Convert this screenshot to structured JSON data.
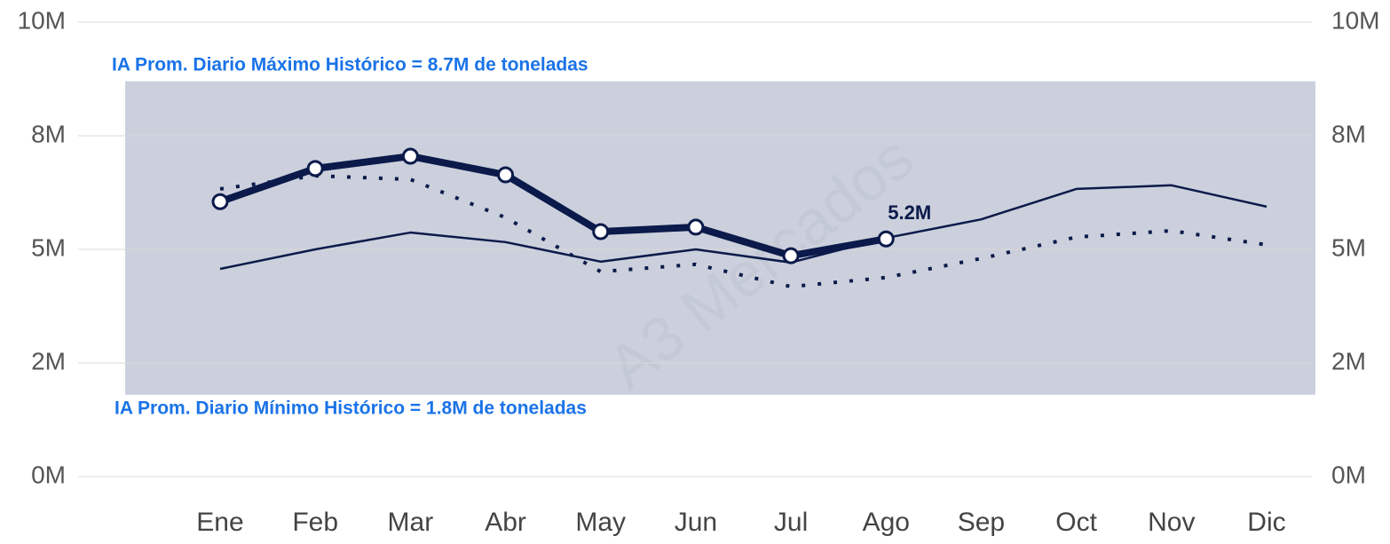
{
  "chart_data": {
    "type": "line",
    "categories": [
      "Ene",
      "Feb",
      "Mar",
      "Abr",
      "May",
      "Jun",
      "Jul",
      "Ago",
      "Sep",
      "Oct",
      "Nov",
      "Dic"
    ],
    "series": [
      {
        "color": "#0b1a4a",
        "style": "solid",
        "width": 2.5,
        "values": [
          4.57,
          5.0,
          5.37,
          5.16,
          4.73,
          5.0,
          4.71,
          5.25,
          5.66,
          6.33,
          6.41,
          5.94
        ]
      },
      {
        "color": "#0b1a4a",
        "style": "dotted",
        "width": 4,
        "values": [
          6.33,
          6.62,
          6.54,
          5.7,
          4.51,
          4.67,
          4.18,
          4.38,
          4.8,
          5.27,
          5.41,
          5.1
        ]
      },
      {
        "color": "#0b1a4a",
        "style": "solid",
        "width": 8,
        "markers": true,
        "values": [
          6.05,
          6.78,
          7.05,
          6.64,
          5.39,
          5.49,
          4.86,
          5.23,
          null,
          null,
          null,
          null
        ],
        "value_labels": [
          null,
          null,
          null,
          null,
          null,
          null,
          null,
          "5.2M",
          null,
          null,
          null,
          null
        ]
      }
    ],
    "ylim": [
      0,
      10
    ],
    "yticks": [
      {
        "value": 0,
        "label": "0M"
      },
      {
        "value": 2.5,
        "label": "2M"
      },
      {
        "value": 5,
        "label": "5M"
      },
      {
        "value": 7.5,
        "label": "8M"
      },
      {
        "value": 10,
        "label": "10M"
      }
    ],
    "grid": true,
    "band": {
      "ymin": 1.8,
      "ymax": 8.7,
      "color": "#cbd0dc"
    },
    "annotations": {
      "max": "IA Prom. Diario Máximo Histórico = 8.7M de toneladas",
      "min": "IA Prom. Diario Mínimo Histórico = 1.8M de toneladas"
    },
    "watermark": "A3 Mercados"
  }
}
